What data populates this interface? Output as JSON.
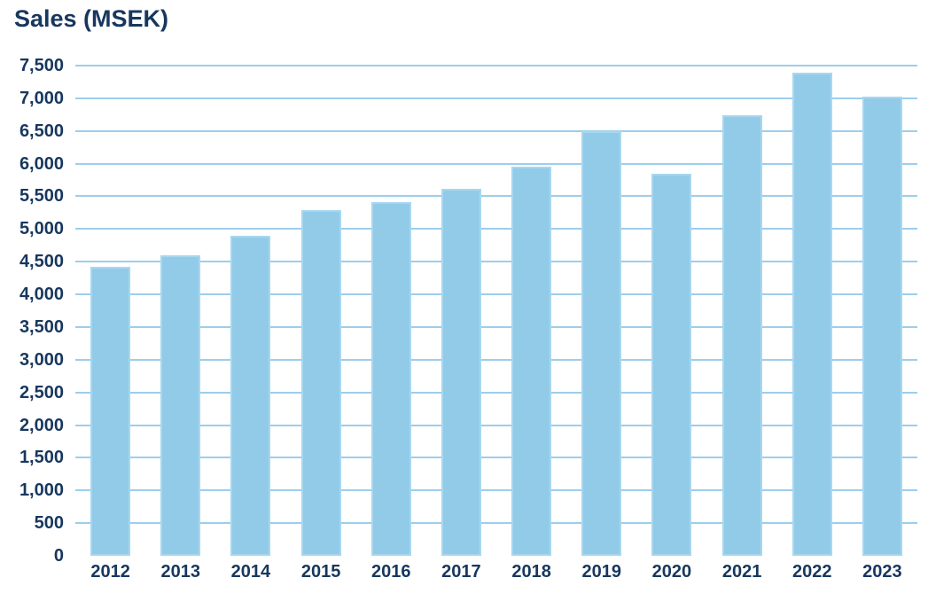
{
  "chart_data": {
    "type": "bar",
    "title": "Sales (MSEK)",
    "xlabel": "",
    "ylabel": "",
    "categories": [
      "2012",
      "2013",
      "2014",
      "2015",
      "2016",
      "2017",
      "2018",
      "2019",
      "2020",
      "2021",
      "2022",
      "2023"
    ],
    "values": [
      4420,
      4600,
      4900,
      5290,
      5410,
      5620,
      5950,
      6500,
      5850,
      6740,
      7390,
      7030
    ],
    "ylim": [
      0,
      7500
    ],
    "ytick_step": 500,
    "yticks": [
      {
        "v": 7500,
        "label": "7,500"
      },
      {
        "v": 7000,
        "label": "7,000"
      },
      {
        "v": 6500,
        "label": "6,500"
      },
      {
        "v": 6000,
        "label": "6,000"
      },
      {
        "v": 5500,
        "label": "5,500"
      },
      {
        "v": 5000,
        "label": "5,000"
      },
      {
        "v": 4500,
        "label": "4,500"
      },
      {
        "v": 4000,
        "label": "4,000"
      },
      {
        "v": 3500,
        "label": "3,500"
      },
      {
        "v": 3000,
        "label": "3,000"
      },
      {
        "v": 2500,
        "label": "2,500"
      },
      {
        "v": 2000,
        "label": "2,000"
      },
      {
        "v": 1500,
        "label": "1,500"
      },
      {
        "v": 1000,
        "label": "1,000"
      },
      {
        "v": 500,
        "label": "500"
      },
      {
        "v": 0,
        "label": "0"
      }
    ],
    "grid": true,
    "legend": "none",
    "colors": {
      "bar_fill": "#92CBE8",
      "bar_border": "#A8D7F0",
      "gridline": "#9CCEEC",
      "text": "#17375E",
      "title": "#17375E"
    }
  }
}
